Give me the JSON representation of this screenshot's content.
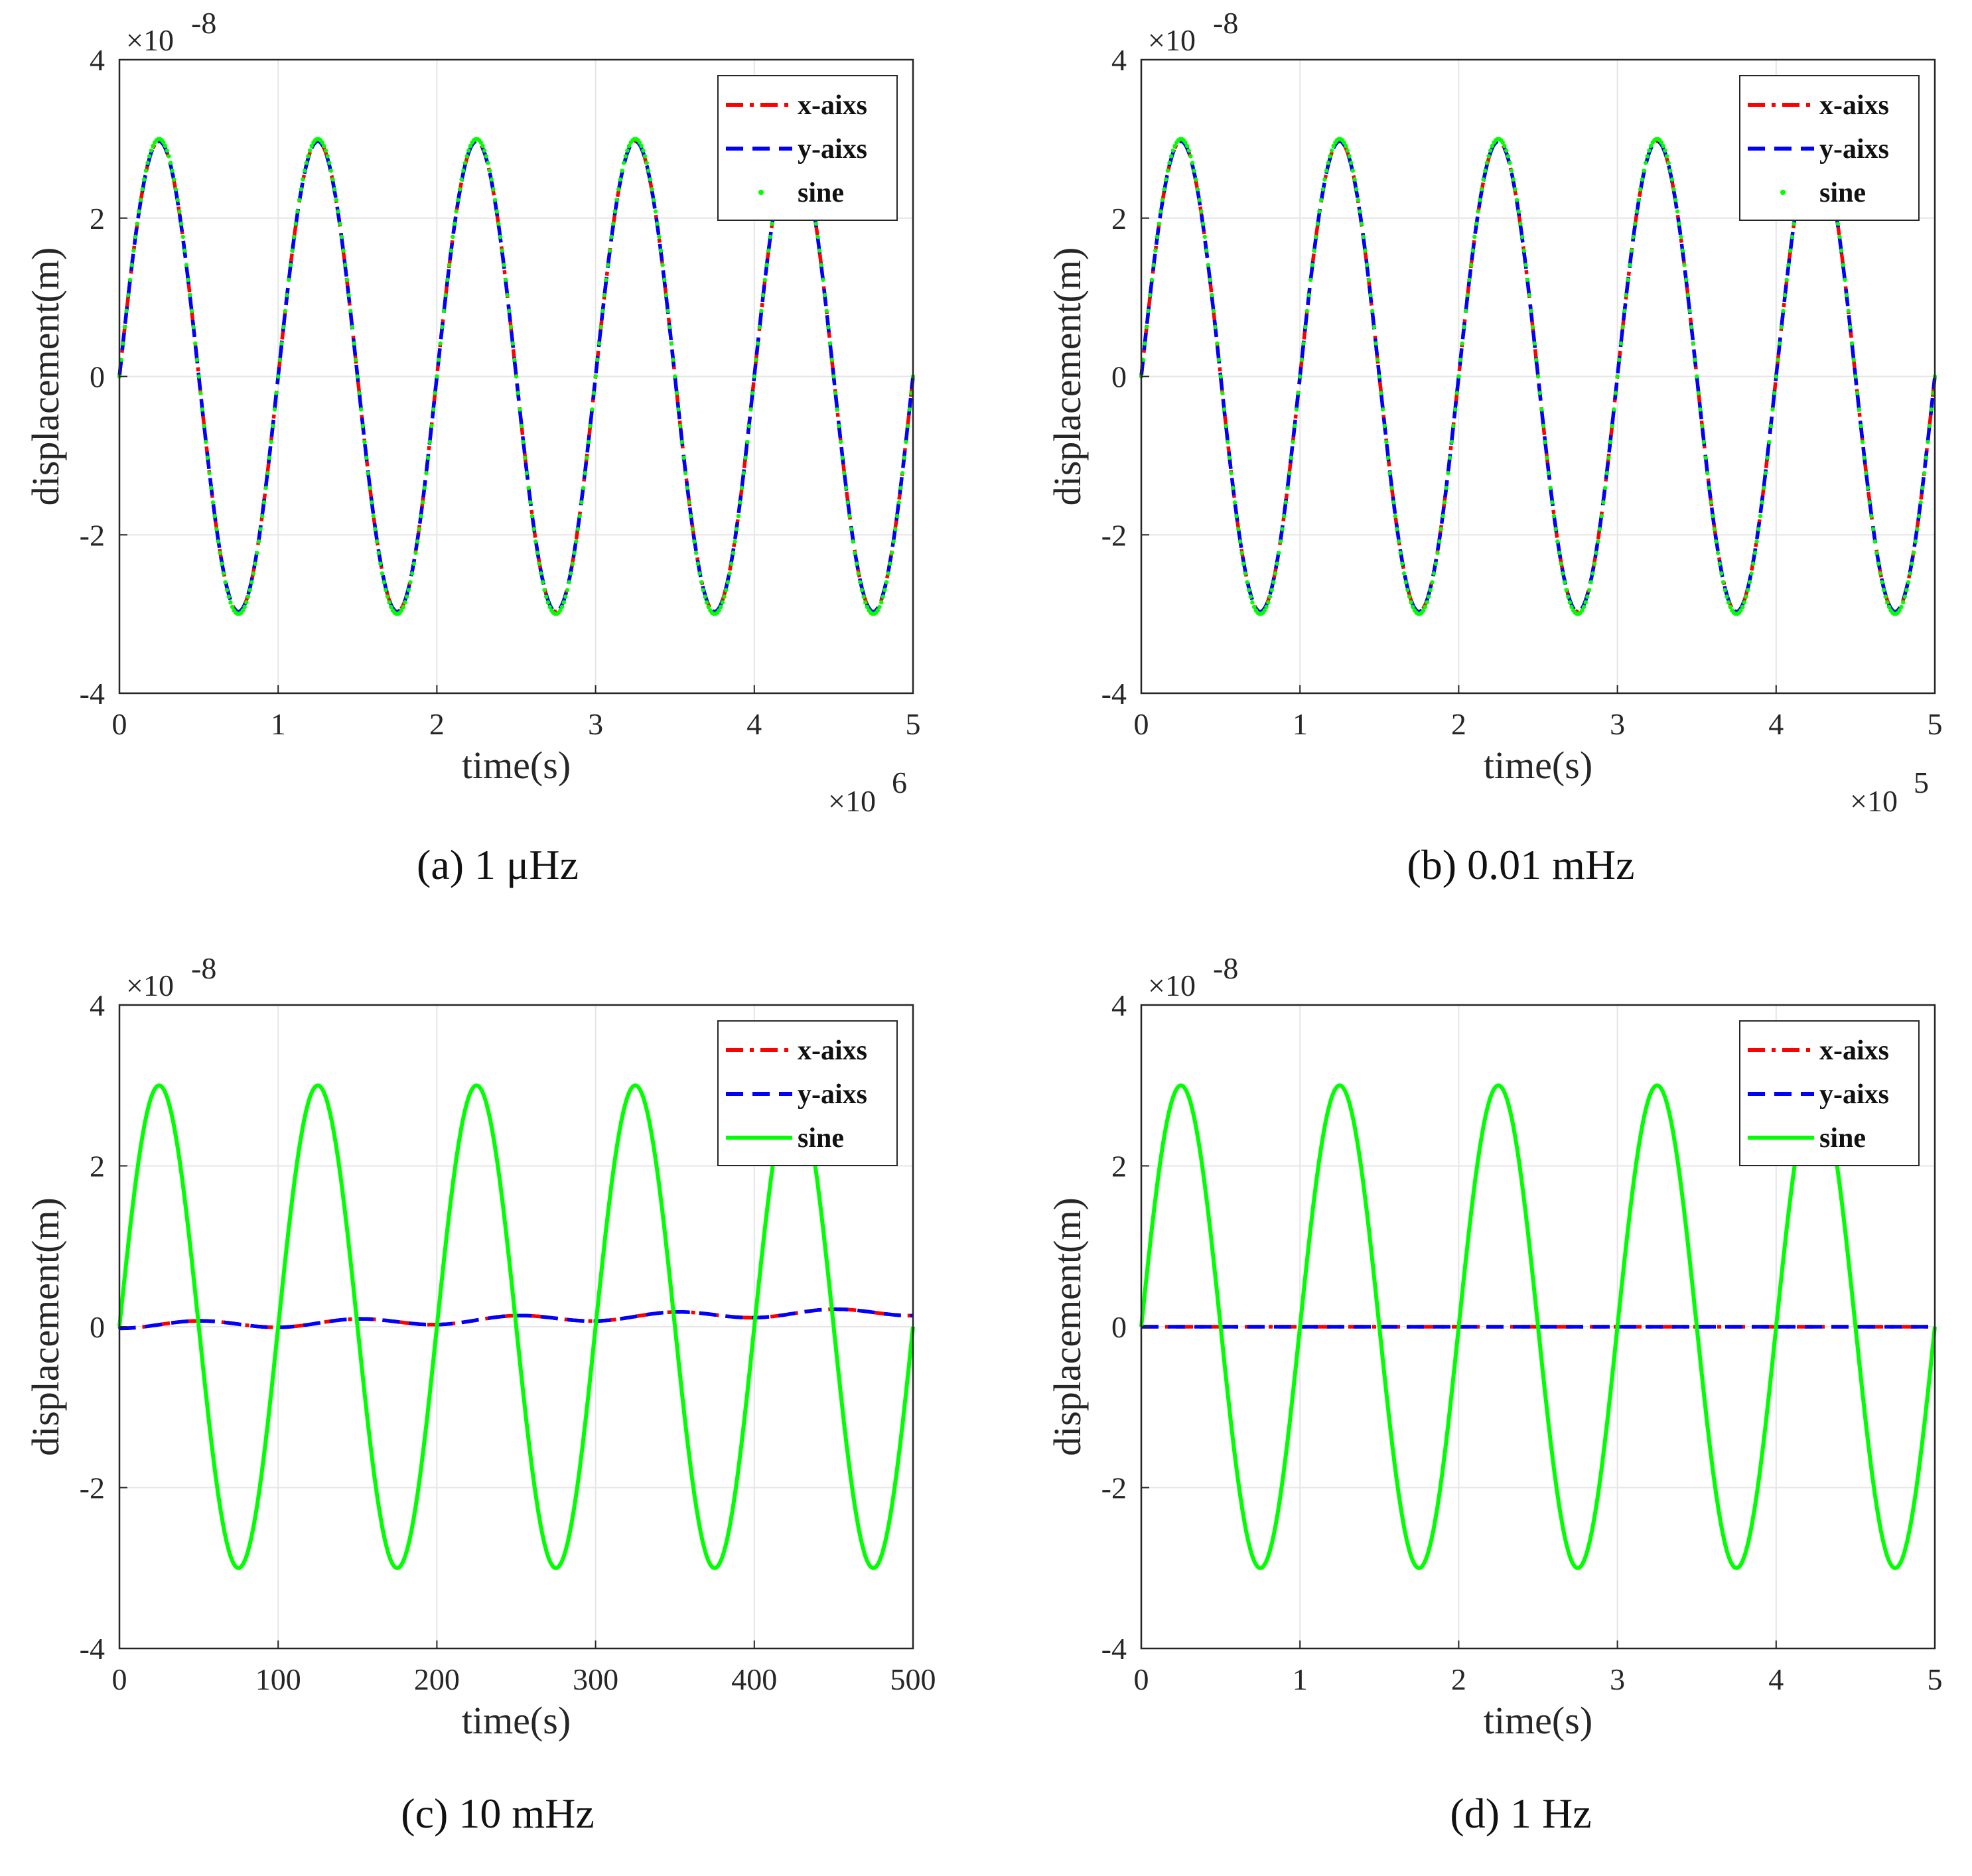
{
  "colors": {
    "x_axis": "#ff0000",
    "y_axis": "#0000ff",
    "sine": "#00ff00",
    "grid": "#e6e6e6",
    "axis": "#262626"
  },
  "chart_data": [
    {
      "type": "line",
      "caption": "(a) 1 μHz",
      "xlabel": "time(s)",
      "ylabel": "displacement(m)",
      "xlim": [
        0,
        5
      ],
      "ylim": [
        -4,
        4
      ],
      "xticks": [
        "0",
        "1",
        "2",
        "3",
        "4",
        "5"
      ],
      "yticks": [
        "-4",
        "-2",
        "0",
        "2",
        "4"
      ],
      "x_multiplier": "×10",
      "x_exponent": "6",
      "y_multiplier": "×10",
      "y_exponent": "-8",
      "grid": true,
      "legend_position": "top-right",
      "legend": [
        "x-aixs",
        "y-aixs",
        "sine"
      ],
      "sine_style": "dots",
      "series": [
        {
          "name": "x-aixs",
          "style": "dashdot",
          "amplitude": 2.97,
          "cycles": 5,
          "offset": 0,
          "ripple": 0
        },
        {
          "name": "y-aixs",
          "style": "dash",
          "amplitude": 2.97,
          "cycles": 5,
          "offset": 0,
          "ripple": 0
        },
        {
          "name": "sine",
          "style": "dots",
          "amplitude": 3.0,
          "cycles": 5,
          "offset": 0,
          "ripple": 0
        }
      ]
    },
    {
      "type": "line",
      "caption": "(b) 0.01 mHz",
      "xlabel": "time(s)",
      "ylabel": "displacement(m)",
      "xlim": [
        0,
        5
      ],
      "ylim": [
        -4,
        4
      ],
      "xticks": [
        "0",
        "1",
        "2",
        "3",
        "4",
        "5"
      ],
      "yticks": [
        "-4",
        "-2",
        "0",
        "2",
        "4"
      ],
      "x_multiplier": "×10",
      "x_exponent": "5",
      "y_multiplier": "×10",
      "y_exponent": "-8",
      "grid": true,
      "legend_position": "top-right",
      "legend": [
        "x-aixs",
        "y-aixs",
        "sine"
      ],
      "sine_style": "dots",
      "series": [
        {
          "name": "x-aixs",
          "style": "dashdot",
          "amplitude": 2.97,
          "cycles": 5,
          "offset": 0,
          "ripple": 0
        },
        {
          "name": "y-aixs",
          "style": "dash",
          "amplitude": 2.97,
          "cycles": 5,
          "offset": 0,
          "ripple": 0
        },
        {
          "name": "sine",
          "style": "dots",
          "amplitude": 3.0,
          "cycles": 5,
          "offset": 0,
          "ripple": 0
        }
      ]
    },
    {
      "type": "line",
      "caption": "(c) 10 mHz",
      "xlabel": "time(s)",
      "ylabel": "displacement(m)",
      "xlim": [
        0,
        500
      ],
      "ylim": [
        -4,
        4
      ],
      "xticks": [
        "0",
        "100",
        "200",
        "300",
        "400",
        "500"
      ],
      "yticks": [
        "-4",
        "-2",
        "0",
        "2",
        "4"
      ],
      "x_multiplier": "",
      "x_exponent": "",
      "y_multiplier": "×10",
      "y_exponent": "-8",
      "grid": true,
      "legend_position": "top-right",
      "legend": [
        "x-aixs",
        "y-aixs",
        "sine"
      ],
      "sine_style": "solid",
      "series": [
        {
          "name": "x-aixs",
          "style": "dashdot",
          "amplitude": 0.05,
          "cycles": 5,
          "offset": 0.1,
          "ripple": 0.05
        },
        {
          "name": "y-aixs",
          "style": "dash",
          "amplitude": 0.05,
          "cycles": 5,
          "offset": 0.1,
          "ripple": 0.05
        },
        {
          "name": "sine",
          "style": "solid",
          "amplitude": 3.0,
          "cycles": 5,
          "offset": 0,
          "ripple": 0
        }
      ]
    },
    {
      "type": "line",
      "caption": "(d) 1 Hz",
      "xlabel": "time(s)",
      "ylabel": "displacement(m)",
      "xlim": [
        0,
        5
      ],
      "ylim": [
        -4,
        4
      ],
      "xticks": [
        "0",
        "1",
        "2",
        "3",
        "4",
        "5"
      ],
      "yticks": [
        "-4",
        "-2",
        "0",
        "2",
        "4"
      ],
      "x_multiplier": "",
      "x_exponent": "",
      "y_multiplier": "×10",
      "y_exponent": "-8",
      "grid": true,
      "legend_position": "top-right",
      "legend": [
        "x-aixs",
        "y-aixs",
        "sine"
      ],
      "sine_style": "solid",
      "series": [
        {
          "name": "x-aixs",
          "style": "dashdot",
          "amplitude": 0,
          "cycles": 5,
          "offset": 0,
          "ripple": 0
        },
        {
          "name": "y-aixs",
          "style": "dash",
          "amplitude": 0,
          "cycles": 5,
          "offset": 0,
          "ripple": 0
        },
        {
          "name": "sine",
          "style": "solid",
          "amplitude": 3.0,
          "cycles": 5,
          "offset": 0,
          "ripple": 0
        }
      ]
    }
  ]
}
